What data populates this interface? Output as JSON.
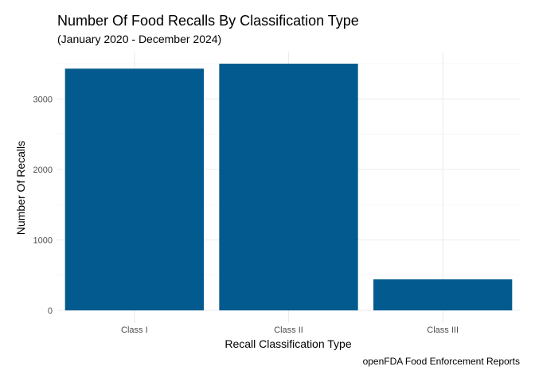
{
  "chart_data": {
    "type": "bar",
    "title": "Number Of Food Recalls By Classification Type",
    "subtitle": "(January 2020 - December 2024)",
    "xlabel": "Recall Classification Type",
    "ylabel": "Number Of Recalls",
    "caption": "openFDA Food Enforcement Reports",
    "categories": [
      "Class I",
      "Class II",
      "Class III"
    ],
    "values": [
      3430,
      3500,
      440
    ],
    "ylim": [
      0,
      3670
    ],
    "yticks": [
      0,
      1000,
      2000,
      3000
    ],
    "ytick_labels": [
      "0",
      "1000",
      "2000",
      "3000"
    ],
    "bar_color": "#035a8e",
    "grid": true
  }
}
